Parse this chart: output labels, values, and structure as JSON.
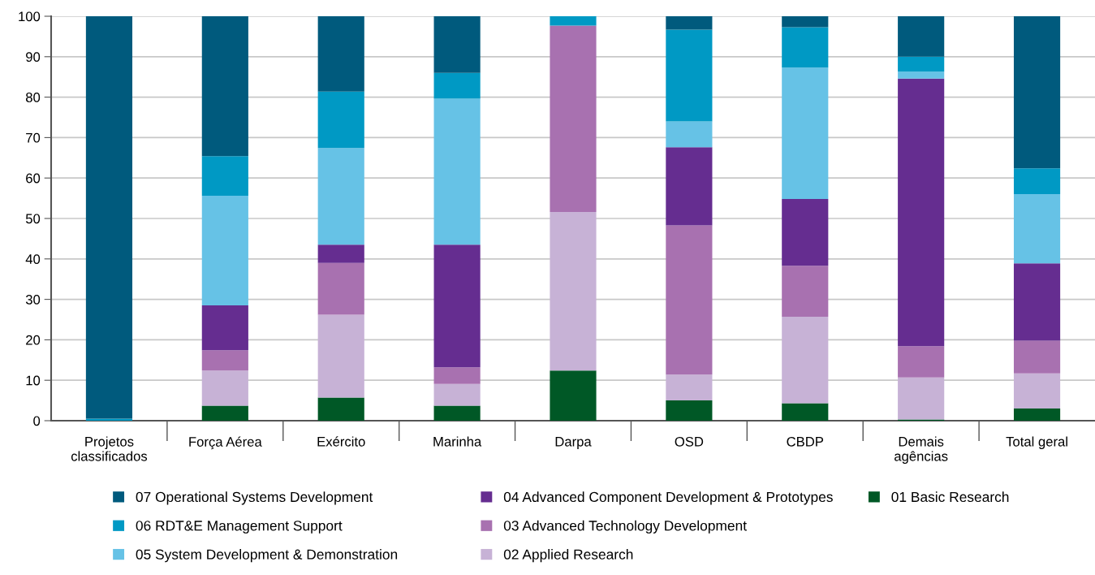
{
  "chart_data": {
    "type": "bar",
    "stacked": true,
    "categories": [
      "Projetos\nclassificados",
      "Força Aérea",
      "Exército",
      "Marinha",
      "Darpa",
      "OSD",
      "CBDP",
      "Demais\nagências",
      "Total geral"
    ],
    "series": [
      {
        "name": "01 Basic Research",
        "color": "#005826",
        "values": [
          0,
          3.7,
          5.7,
          3.7,
          12.4,
          5.0,
          4.3,
          0.3,
          3.0
        ]
      },
      {
        "name": "02 Applied Research",
        "color": "#c7b2d6",
        "values": [
          0,
          8.7,
          20.5,
          5.4,
          39.2,
          6.4,
          21.4,
          10.4,
          8.7
        ]
      },
      {
        "name": "03 Advanced Technology Development",
        "color": "#a871b0",
        "values": [
          0,
          5.0,
          12.8,
          4.1,
          46.1,
          36.9,
          12.6,
          7.7,
          8.1
        ]
      },
      {
        "name": "04 Advanced Component Development & Prototypes",
        "color": "#652d90",
        "values": [
          0,
          11.1,
          4.5,
          30.3,
          0,
          19.3,
          16.5,
          66.2,
          19.1
        ]
      },
      {
        "name": "05 System Development & Demonstration",
        "color": "#66c2e6",
        "values": [
          0,
          27.1,
          23.9,
          36.1,
          0,
          6.4,
          32.5,
          1.7,
          17.1
        ]
      },
      {
        "name": "06 RDT&E Management Support",
        "color": "#0099c4",
        "values": [
          0.5,
          9.8,
          14.0,
          6.4,
          2.3,
          22.7,
          10.0,
          3.7,
          6.4
        ]
      },
      {
        "name": "07 Operational Systems Development",
        "color": "#005a7d",
        "values": [
          99.5,
          34.6,
          18.6,
          14.0,
          0,
          3.3,
          2.7,
          10.0,
          37.6
        ]
      }
    ],
    "ylim": [
      0,
      100
    ],
    "yticks": [
      0,
      10,
      20,
      30,
      40,
      50,
      60,
      70,
      80,
      90,
      100
    ],
    "grid": "y",
    "legend": "bottom"
  }
}
